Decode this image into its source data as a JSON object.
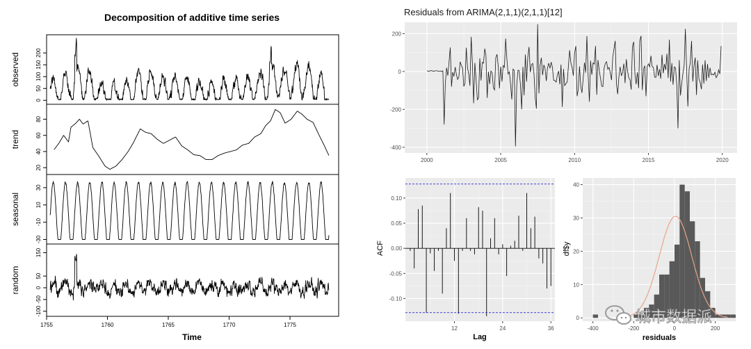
{
  "chart_data": [
    {
      "type": "line",
      "title": "Decomposition of additive time series",
      "xlabel": "Time",
      "x_range": [
        1755,
        1779
      ],
      "x_ticks": [
        "1755",
        "1760",
        "1765",
        "1770",
        "1775"
      ],
      "panels": [
        {
          "name": "observed",
          "ylabel": "observed",
          "ylim": [
            -5,
            265
          ],
          "ticks": [
            "0",
            "50",
            "100",
            "150",
            "200"
          ],
          "tick_values": [
            0,
            50,
            100,
            150,
            200
          ]
        },
        {
          "name": "trend",
          "ylabel": "trend",
          "ylim": [
            15,
            95
          ],
          "ticks": [
            "20",
            "40",
            "60",
            "80"
          ],
          "tick_values": [
            20,
            40,
            60,
            80
          ]
        },
        {
          "name": "seasonal",
          "ylabel": "seasonal",
          "ylim": [
            -32,
            42
          ],
          "ticks": [
            "-30",
            "-10",
            "10",
            "30"
          ],
          "tick_values": [
            -30,
            -10,
            10,
            30
          ]
        },
        {
          "name": "random",
          "ylabel": "random",
          "ylim": [
            -110,
            175
          ],
          "ticks": [
            "-100",
            "-50",
            "0",
            "50",
            "150"
          ],
          "tick_values": [
            -100,
            -50,
            0,
            50,
            150
          ]
        }
      ],
      "trend_points": [
        [
          1755.6,
          42
        ],
        [
          1756.0,
          50
        ],
        [
          1756.4,
          60
        ],
        [
          1756.8,
          52
        ],
        [
          1757.0,
          70
        ],
        [
          1757.4,
          75
        ],
        [
          1757.7,
          80
        ],
        [
          1758.0,
          74
        ],
        [
          1758.4,
          78
        ],
        [
          1758.8,
          45
        ],
        [
          1759.3,
          34
        ],
        [
          1759.8,
          22
        ],
        [
          1760.2,
          18
        ],
        [
          1760.7,
          22
        ],
        [
          1761.2,
          30
        ],
        [
          1761.7,
          40
        ],
        [
          1762.1,
          50
        ],
        [
          1762.7,
          68
        ],
        [
          1763.1,
          64
        ],
        [
          1763.6,
          62
        ],
        [
          1764.1,
          55
        ],
        [
          1764.6,
          50
        ],
        [
          1765.1,
          54
        ],
        [
          1765.6,
          58
        ],
        [
          1766.1,
          47
        ],
        [
          1766.6,
          42
        ],
        [
          1767.1,
          36
        ],
        [
          1767.6,
          35
        ],
        [
          1768.1,
          30
        ],
        [
          1768.6,
          30
        ],
        [
          1769.1,
          35
        ],
        [
          1769.6,
          38
        ],
        [
          1770.1,
          40
        ],
        [
          1770.6,
          42
        ],
        [
          1771.1,
          48
        ],
        [
          1771.6,
          50
        ],
        [
          1772.1,
          58
        ],
        [
          1772.6,
          62
        ],
        [
          1773.0,
          72
        ],
        [
          1773.4,
          78
        ],
        [
          1773.8,
          92
        ],
        [
          1774.2,
          88
        ],
        [
          1774.6,
          75
        ],
        [
          1775.1,
          80
        ],
        [
          1775.6,
          90
        ],
        [
          1776.0,
          86
        ],
        [
          1776.4,
          80
        ],
        [
          1776.9,
          76
        ],
        [
          1777.4,
          60
        ],
        [
          1777.8,
          48
        ],
        [
          1778.2,
          35
        ]
      ]
    },
    {
      "type": "line",
      "title": "Residuals from ARIMA(2,1,1)(2,1,1)[12]",
      "x_range": [
        1998.5,
        2021
      ],
      "x_ticks": [
        "2000",
        "2005",
        "2010",
        "2015",
        "2020"
      ],
      "ylim": [
        -430,
        260
      ],
      "y_ticks": [
        "-400",
        "-200",
        "0",
        "200"
      ],
      "y_tick_values": [
        -400,
        -200,
        0,
        200
      ],
      "highlights": [
        {
          "x": 2001.2,
          "y": -280
        },
        {
          "x": 2006.0,
          "y": -395
        },
        {
          "x": 2007.5,
          "y": 250
        },
        {
          "x": 2017.0,
          "y": -300
        },
        {
          "x": 2017.5,
          "y": 225
        }
      ]
    },
    {
      "type": "bar",
      "subtype": "acf",
      "ylabel": "ACF",
      "xlabel": "Lag",
      "ylim": [
        -0.145,
        0.14
      ],
      "y_ticks": [
        "-0.10",
        "-0.05",
        "0.00",
        "0.05",
        "0.10"
      ],
      "y_tick_values": [
        -0.1,
        -0.05,
        0.0,
        0.05,
        0.1
      ],
      "x_ticks": [
        "12",
        "24",
        "36"
      ],
      "x_tick_values": [
        12,
        24,
        36
      ],
      "conf_limit": 0.128,
      "lags": [
        1,
        2,
        3,
        4,
        5,
        6,
        7,
        8,
        9,
        10,
        11,
        12,
        13,
        14,
        15,
        16,
        17,
        18,
        19,
        20,
        21,
        22,
        23,
        24,
        25,
        26,
        27,
        28,
        29,
        30,
        31,
        32,
        33,
        34,
        35,
        36
      ],
      "values": [
        -0.005,
        -0.04,
        0.078,
        0.085,
        -0.128,
        -0.01,
        -0.045,
        -0.005,
        -0.09,
        0.04,
        0.11,
        -0.025,
        -0.13,
        -0.005,
        0.06,
        -0.005,
        -0.012,
        0.082,
        0.075,
        -0.135,
        0.02,
        0.06,
        -0.012,
        0.008,
        -0.055,
        0.005,
        0.015,
        0.065,
        -0.005,
        0.11,
        0.04,
        0.063,
        -0.02,
        -0.03,
        -0.08,
        -0.075
      ]
    },
    {
      "type": "bar",
      "subtype": "histogram",
      "ylabel": "df$y",
      "xlabel": "residuals",
      "xlim": [
        -450,
        300
      ],
      "ylim": [
        -1,
        42
      ],
      "x_ticks": [
        "-400",
        "-200",
        "0",
        "200"
      ],
      "x_tick_values": [
        -400,
        -200,
        0,
        200
      ],
      "y_ticks": [
        "0",
        "10",
        "20",
        "30",
        "40"
      ],
      "y_tick_values": [
        0,
        10,
        20,
        30,
        40
      ],
      "bin_width": 25,
      "bin_start": -400,
      "counts": [
        1,
        0,
        0,
        0,
        0,
        0,
        0,
        0,
        1,
        1,
        3,
        4,
        7,
        13,
        13,
        17,
        22,
        40,
        38,
        29,
        23,
        12,
        8,
        3,
        1,
        1,
        1,
        1
      ],
      "density_curve_color": "#e8a48a"
    }
  ],
  "watermark": {
    "text": "城市数据派"
  }
}
